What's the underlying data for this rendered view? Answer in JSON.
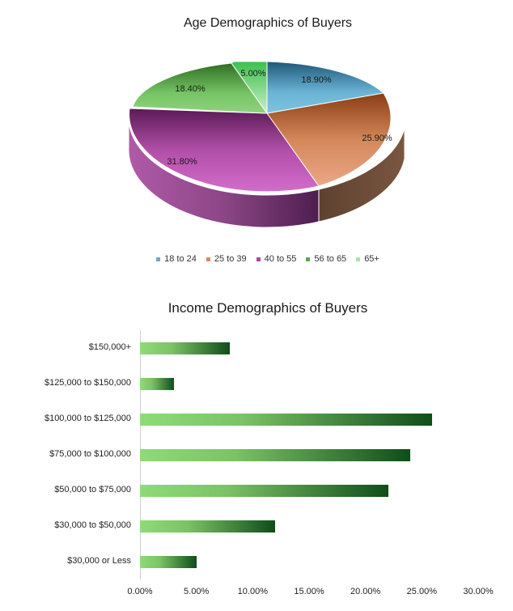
{
  "chart_data": [
    {
      "type": "pie",
      "title": "Age Demographics of Buyers",
      "style": "3d",
      "categories": [
        "18 to 24",
        "25 to 39",
        "40 to 55",
        "56 to 65",
        "65+"
      ],
      "values": [
        18.9,
        25.9,
        31.8,
        18.4,
        5.0
      ],
      "data_labels": [
        "18.90%",
        "25.90%",
        "31.80%",
        "18.40%",
        "5.00%"
      ],
      "colors": [
        "#6fb6d6",
        "#d98a5e",
        "#c65bbd",
        "#7cc86a",
        "#8fde8f"
      ],
      "legend_position": "bottom"
    },
    {
      "type": "bar",
      "orientation": "horizontal",
      "title": "Income Demographics of Buyers",
      "categories": [
        "$150,000+",
        "$125,000 to $150,000",
        "$100,000 to $125,000",
        "$75,000 to $100,000",
        "$50,000 to $75,000",
        "$30,000 to $50,000",
        "$30,000 or Less"
      ],
      "values": [
        8.0,
        3.0,
        25.9,
        24.0,
        22.0,
        12.0,
        5.0
      ],
      "xlabel": "",
      "ylabel": "",
      "xlim": [
        0,
        30
      ],
      "x_ticks": [
        "0.00%",
        "5.00%",
        "10.00%",
        "15.00%",
        "20.00%",
        "25.00%",
        "30.00%"
      ],
      "grid": false,
      "bar_gradient": [
        "#8fdb78",
        "#0f4d1a"
      ]
    }
  ],
  "pie": {
    "title": "Age Demographics of Buyers",
    "labels": [
      "18.90%",
      "25.90%",
      "31.80%",
      "18.40%",
      "5.00%"
    ],
    "legend": [
      "18 to 24",
      "25 to 39",
      "40 to 55",
      "56 to 65",
      "65+"
    ]
  },
  "bar": {
    "title": "Income Demographics of Buyers",
    "categories": [
      "$150,000+",
      "$125,000 to $150,000",
      "$100,000 to $125,000",
      "$75,000 to $100,000",
      "$50,000 to $75,000",
      "$30,000 to $50,000",
      "$30,000 or Less"
    ],
    "ticks": [
      "0.00%",
      "5.00%",
      "10.00%",
      "15.00%",
      "20.00%",
      "25.00%",
      "30.00%"
    ]
  }
}
